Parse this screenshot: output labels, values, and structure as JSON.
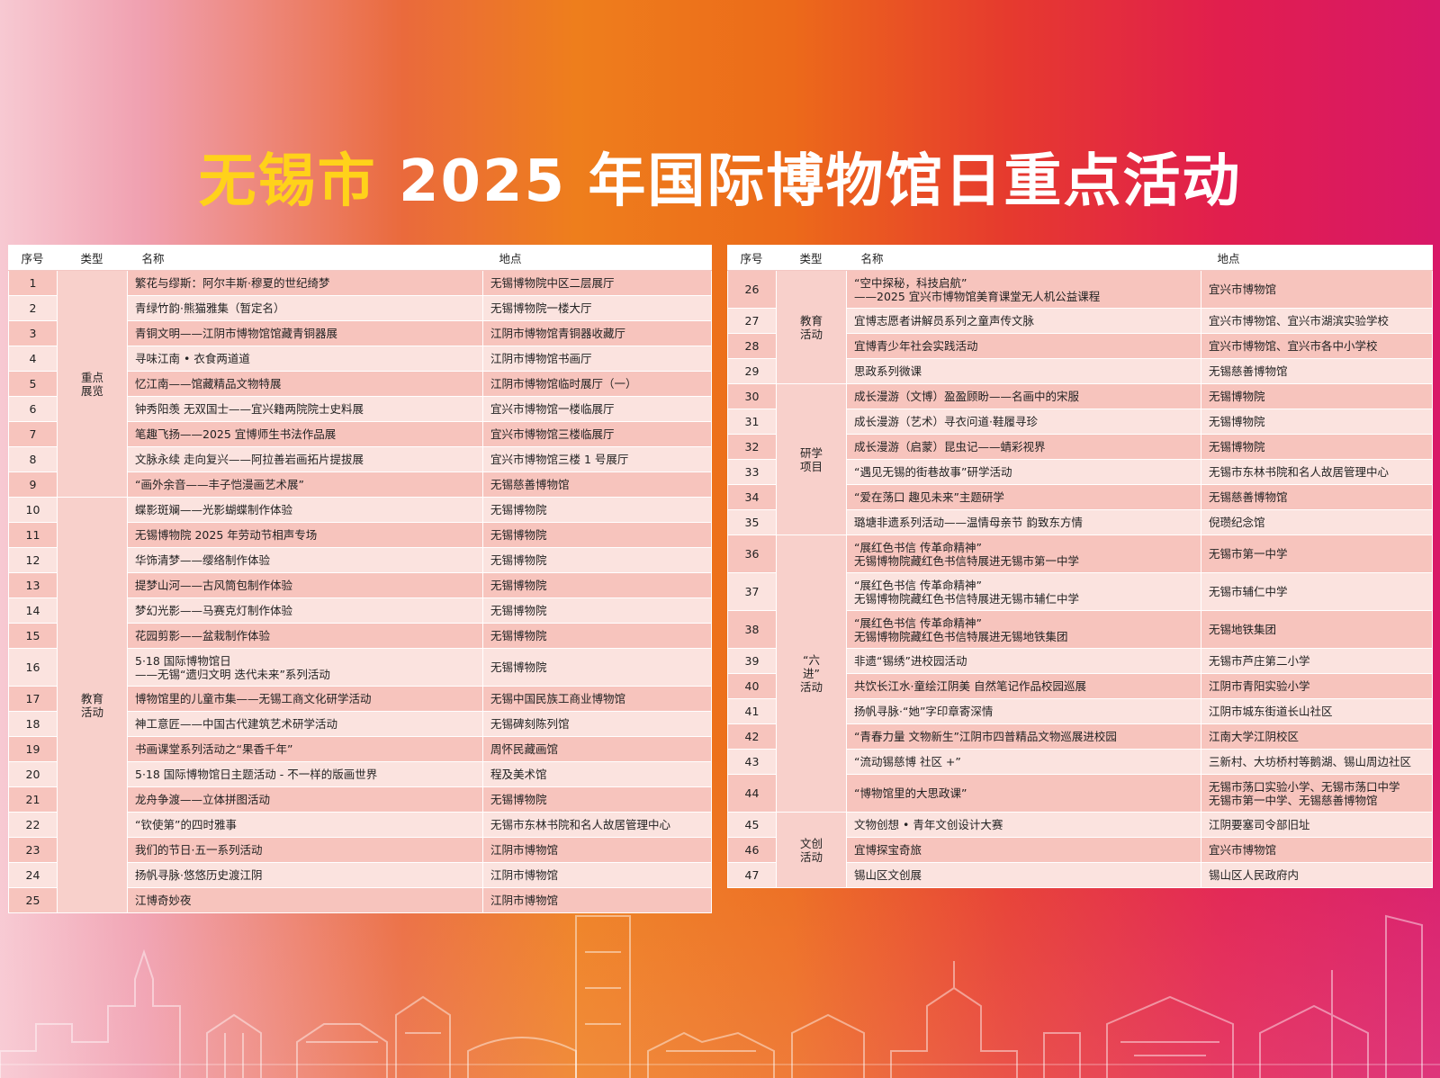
{
  "title": {
    "city": "无锡市",
    "rest": " 2025 年国际博物馆日重点活动"
  },
  "headers": {
    "num": "序号",
    "type": "类型",
    "name": "名称",
    "location": "地点"
  },
  "left": [
    {
      "category": "重点\n展览",
      "rows": [
        {
          "num": "1",
          "name": [
            "繁花与缪斯：阿尔丰斯·穆夏的世纪绮梦"
          ],
          "location": [
            "无锡博物院中区二层展厅"
          ]
        },
        {
          "num": "2",
          "name": [
            "青绿竹韵·熊猫雅集（暂定名）"
          ],
          "location": [
            "无锡博物院一楼大厅"
          ]
        },
        {
          "num": "3",
          "name": [
            "青铜文明——江阴市博物馆馆藏青铜器展"
          ],
          "location": [
            "江阴市博物馆青铜器收藏厅"
          ]
        },
        {
          "num": "4",
          "name": [
            "寻味江南 • 衣食两道道"
          ],
          "location": [
            "江阴市博物馆书画厅"
          ]
        },
        {
          "num": "5",
          "name": [
            "忆江南——馆藏精品文物特展"
          ],
          "location": [
            "江阴市博物馆临时展厅（一）"
          ]
        },
        {
          "num": "6",
          "name": [
            "钟秀阳羡 无双国士——宜兴籍两院院士史料展"
          ],
          "location": [
            "宜兴市博物馆一楼临展厅"
          ]
        },
        {
          "num": "7",
          "name": [
            "笔趣飞扬——2025 宜博师生书法作品展"
          ],
          "location": [
            "宜兴市博物馆三楼临展厅"
          ]
        },
        {
          "num": "8",
          "name": [
            "文脉永续 走向复兴——阿拉善岩画拓片提拔展"
          ],
          "location": [
            "宜兴市博物馆三楼 1 号展厅"
          ]
        },
        {
          "num": "9",
          "name": [
            "“画外余音——丰子恺漫画艺术展”"
          ],
          "location": [
            "无锡慈善博物馆"
          ]
        }
      ]
    },
    {
      "category": "教育\n活动",
      "rows": [
        {
          "num": "10",
          "name": [
            "蝶影斑斓——光影蝴蝶制作体验"
          ],
          "location": [
            "无锡博物院"
          ]
        },
        {
          "num": "11",
          "name": [
            "无锡博物院 2025 年劳动节相声专场"
          ],
          "location": [
            "无锡博物院"
          ]
        },
        {
          "num": "12",
          "name": [
            "华饰清梦——缨络制作体验"
          ],
          "location": [
            "无锡博物院"
          ]
        },
        {
          "num": "13",
          "name": [
            "提梦山河——古风筒包制作体验"
          ],
          "location": [
            "无锡博物院"
          ]
        },
        {
          "num": "14",
          "name": [
            "梦幻光影——马赛克灯制作体验"
          ],
          "location": [
            "无锡博物院"
          ]
        },
        {
          "num": "15",
          "name": [
            "花园剪影——盆栽制作体验"
          ],
          "location": [
            "无锡博物院"
          ]
        },
        {
          "num": "16",
          "name": [
            "5·18 国际博物馆日",
            "——无锡“遗归文明 迭代未来”系列活动"
          ],
          "location": [
            "无锡博物院"
          ]
        },
        {
          "num": "17",
          "name": [
            "博物馆里的儿童市集——无锡工商文化研学活动"
          ],
          "location": [
            "无锡中国民族工商业博物馆"
          ]
        },
        {
          "num": "18",
          "name": [
            "神工意匠——中国古代建筑艺术研学活动"
          ],
          "location": [
            "无锡碑刻陈列馆"
          ]
        },
        {
          "num": "19",
          "name": [
            "书画课堂系列活动之“果香千年”"
          ],
          "location": [
            "周怀民藏画馆"
          ]
        },
        {
          "num": "20",
          "name": [
            "5·18 国际博物馆日主题活动 - 不一样的版画世界"
          ],
          "location": [
            "程及美术馆"
          ]
        },
        {
          "num": "21",
          "name": [
            "龙舟争渡——立体拼图活动"
          ],
          "location": [
            "无锡博物院"
          ]
        },
        {
          "num": "22",
          "name": [
            "“钦使第”的四时雅事"
          ],
          "location": [
            "无锡市东林书院和名人故居管理中心"
          ]
        },
        {
          "num": "23",
          "name": [
            "我们的节日·五一系列活动"
          ],
          "location": [
            "江阴市博物馆"
          ]
        },
        {
          "num": "24",
          "name": [
            "扬帆寻脉·悠悠历史渡江阴"
          ],
          "location": [
            "江阴市博物馆"
          ]
        },
        {
          "num": "25",
          "name": [
            "江博奇妙夜"
          ],
          "location": [
            "江阴市博物馆"
          ]
        }
      ]
    }
  ],
  "right": [
    {
      "category": "教育\n活动",
      "rows": [
        {
          "num": "26",
          "name": [
            "“空中探秘，科技启航”",
            "——2025 宜兴市博物馆美育课堂无人机公益课程"
          ],
          "location": [
            "宜兴市博物馆"
          ]
        },
        {
          "num": "27",
          "name": [
            "宜博志愿者讲解员系列之童声传文脉"
          ],
          "location": [
            "宜兴市博物馆、宜兴市湖滨实验学校"
          ]
        },
        {
          "num": "28",
          "name": [
            "宜博青少年社会实践活动"
          ],
          "location": [
            "宜兴市博物馆、宜兴市各中小学校"
          ]
        },
        {
          "num": "29",
          "name": [
            "思政系列微课"
          ],
          "location": [
            "无锡慈善博物馆"
          ]
        }
      ]
    },
    {
      "category": "研学\n项目",
      "rows": [
        {
          "num": "30",
          "name": [
            "成长漫游（文博）盈盈顾盼——名画中的宋服"
          ],
          "location": [
            "无锡博物院"
          ]
        },
        {
          "num": "31",
          "name": [
            "成长漫游（艺术）寻衣问道·鞋履寻珍"
          ],
          "location": [
            "无锡博物院"
          ]
        },
        {
          "num": "32",
          "name": [
            "成长漫游（启蒙）昆虫记——蜻彩视界"
          ],
          "location": [
            "无锡博物院"
          ]
        },
        {
          "num": "33",
          "name": [
            "“遇见无锡的街巷故事”研学活动"
          ],
          "location": [
            "无锡市东林书院和名人故居管理中心"
          ]
        },
        {
          "num": "34",
          "name": [
            "“爱在荡口 趣见未来”主题研学"
          ],
          "location": [
            "无锡慈善博物馆"
          ]
        },
        {
          "num": "35",
          "name": [
            "璐塘非遗系列活动——温情母亲节 韵致东方情"
          ],
          "location": [
            "倪瓒纪念馆"
          ]
        }
      ]
    },
    {
      "category": "“六进”\n活动",
      "rows": [
        {
          "num": "36",
          "name": [
            "“展红色书信 传革命精神”",
            "无锡博物院藏红色书信特展进无锡市第一中学"
          ],
          "location": [
            "无锡市第一中学"
          ]
        },
        {
          "num": "37",
          "name": [
            "“展红色书信 传革命精神”",
            "无锡博物院藏红色书信特展进无锡市辅仁中学"
          ],
          "location": [
            "无锡市辅仁中学"
          ]
        },
        {
          "num": "38",
          "name": [
            "“展红色书信 传革命精神”",
            "无锡博物院藏红色书信特展进无锡地铁集团"
          ],
          "location": [
            "无锡地铁集团"
          ]
        },
        {
          "num": "39",
          "name": [
            "非遗“锡绣”进校园活动"
          ],
          "location": [
            "无锡市芦庄第二小学"
          ]
        },
        {
          "num": "40",
          "name": [
            "共饮长江水·童绘江阴美 自然笔记作品校园巡展"
          ],
          "location": [
            "江阴市青阳实验小学"
          ]
        },
        {
          "num": "41",
          "name": [
            "扬帆寻脉·“她”字印章寄深情"
          ],
          "location": [
            "江阴市城东街道长山社区"
          ]
        },
        {
          "num": "42",
          "name": [
            "“青春力量 文物新生”江阴市四普精品文物巡展进校园"
          ],
          "location": [
            "江南大学江阴校区"
          ]
        },
        {
          "num": "43",
          "name": [
            "“流动锡慈博 社区 +”"
          ],
          "location": [
            "三新村、大坊桥村等鹅湖、锡山周边社区"
          ]
        },
        {
          "num": "44",
          "name": [
            "“博物馆里的大思政课”"
          ],
          "location": [
            "无锡市荡口实验小学、无锡市荡口中学",
            "无锡市第一中学、无锡慈善博物馆"
          ]
        }
      ]
    },
    {
      "category": "文创\n活动",
      "rows": [
        {
          "num": "45",
          "name": [
            "文物创想 • 青年文创设计大赛"
          ],
          "location": [
            "江阴要塞司令部旧址"
          ]
        },
        {
          "num": "46",
          "name": [
            "宜博探宝奇旅"
          ],
          "location": [
            "宜兴市博物馆"
          ]
        },
        {
          "num": "47",
          "name": [
            "锡山区文创展"
          ],
          "location": [
            "锡山区人民政府内"
          ]
        }
      ]
    }
  ]
}
